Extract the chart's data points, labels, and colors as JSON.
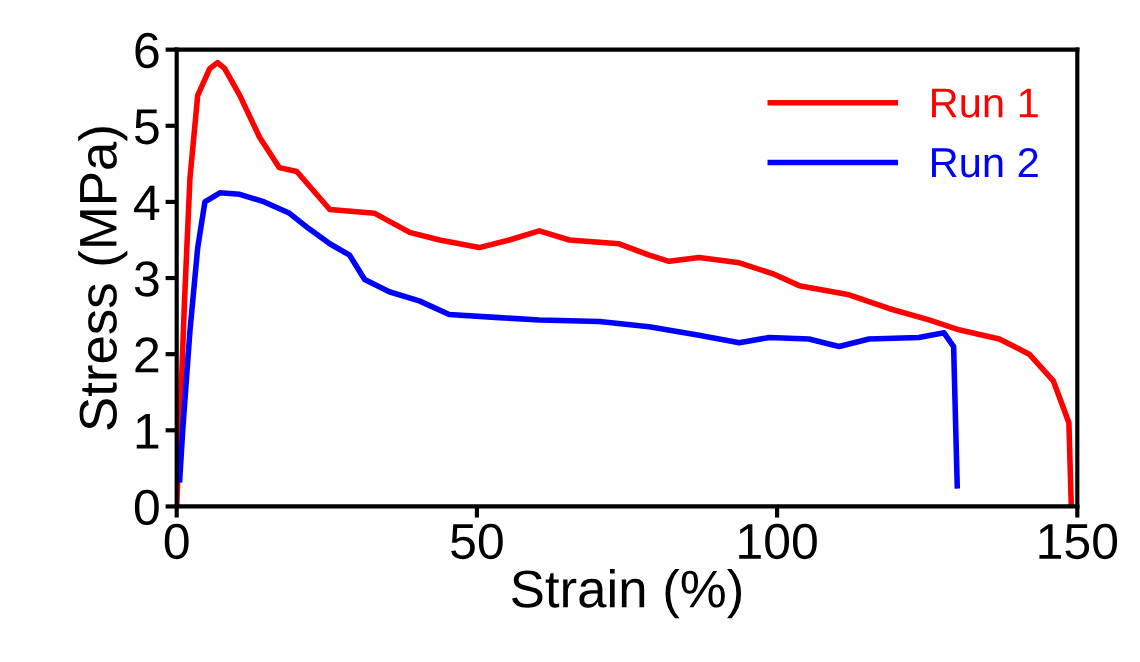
{
  "chart_data": {
    "type": "line",
    "xlabel": "Strain (%)",
    "ylabel": "Stress (MPa)",
    "xlim": [
      0,
      150
    ],
    "xticks": [
      0,
      50,
      100,
      150
    ],
    "ylim": [
      0,
      6
    ],
    "yticks": [
      0,
      1,
      2,
      3,
      4,
      5,
      6
    ],
    "grid": false,
    "legend": "top right",
    "marker": "none",
    "line_style": "solid",
    "series": [
      {
        "name": "Run 1",
        "color": "#ff0000",
        "x": [
          0,
          0.5,
          1.3,
          2.2,
          3.5,
          5.5,
          6.8,
          8,
          10.5,
          13.8,
          17.1,
          20,
          25.5,
          33,
          38.8,
          43.8,
          50.4,
          55.4,
          60.4,
          65.4,
          73.7,
          78.7,
          82,
          87,
          93.7,
          99.5,
          103.7,
          112,
          118.6,
          125.3,
          130.3,
          137,
          142,
          146,
          148.6,
          149
        ],
        "values": [
          0,
          1.0,
          2.7,
          4.3,
          5.4,
          5.75,
          5.83,
          5.75,
          5.4,
          4.85,
          4.45,
          4.4,
          3.9,
          3.85,
          3.6,
          3.5,
          3.4,
          3.5,
          3.62,
          3.5,
          3.45,
          3.3,
          3.22,
          3.27,
          3.2,
          3.05,
          2.9,
          2.78,
          2.6,
          2.45,
          2.32,
          2.2,
          2.0,
          1.65,
          1.1,
          0
        ]
      },
      {
        "name": "Run 2",
        "color": "#0000ff",
        "x": [
          0.5,
          1,
          2.2,
          3.5,
          4.7,
          7.2,
          10.5,
          14.6,
          18.8,
          22,
          25.5,
          28.8,
          31.3,
          35.4,
          40.4,
          45.4,
          53.7,
          60.4,
          70.4,
          78.7,
          87,
          93.7,
          98.7,
          105.3,
          110.3,
          115.3,
          123.6,
          127.8,
          129.4,
          130
        ],
        "values": [
          0.35,
          1.0,
          2.3,
          3.4,
          4.0,
          4.12,
          4.1,
          4.0,
          3.85,
          3.65,
          3.45,
          3.3,
          2.98,
          2.82,
          2.7,
          2.52,
          2.48,
          2.45,
          2.43,
          2.36,
          2.25,
          2.15,
          2.22,
          2.2,
          2.1,
          2.2,
          2.22,
          2.28,
          2.1,
          0.27
        ]
      }
    ]
  }
}
